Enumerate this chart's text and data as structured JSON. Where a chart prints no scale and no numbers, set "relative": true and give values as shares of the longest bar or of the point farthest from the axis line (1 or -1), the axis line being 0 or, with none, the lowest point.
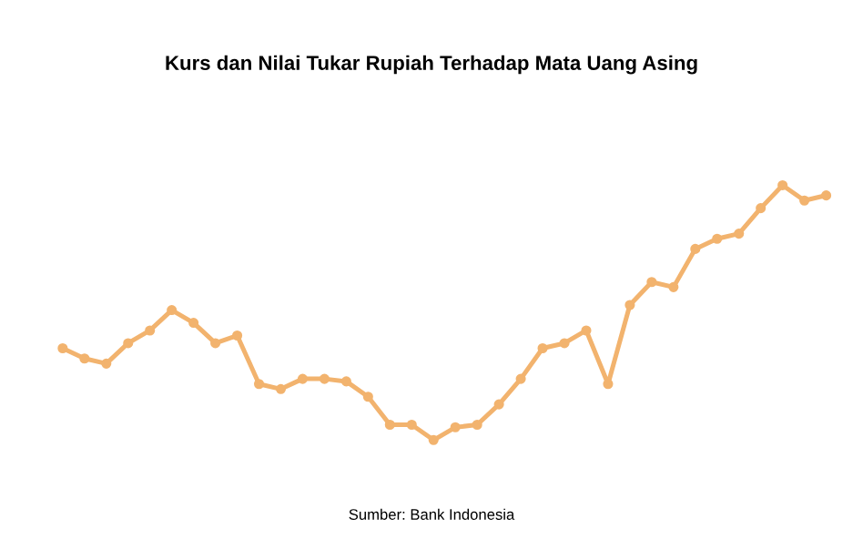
{
  "chart_data": {
    "type": "line",
    "title": "Kurs dan Nilai Tukar Rupiah Terhadap Mata Uang Asing",
    "relative": true,
    "categories": [
      null,
      null,
      null,
      null,
      null,
      null,
      null,
      null,
      null,
      null,
      null,
      null,
      null,
      null,
      null,
      null,
      null,
      null,
      null,
      null,
      null,
      null,
      null,
      null,
      null,
      null,
      null,
      null,
      null,
      null,
      null,
      null,
      null,
      null,
      null,
      null
    ],
    "series": [
      {
        "color": "#f2b36e",
        "values": [
          0.36,
          0.32,
          0.3,
          0.38,
          0.43,
          0.51,
          0.46,
          0.38,
          0.41,
          0.22,
          0.2,
          0.24,
          0.24,
          0.23,
          0.17,
          0.06,
          0.06,
          0,
          0.05,
          0.06,
          0.14,
          0.24,
          0.36,
          0.38,
          0.43,
          0.22,
          0.53,
          0.62,
          0.6,
          0.75,
          0.79,
          0.81,
          0.91,
          1,
          0.94,
          0.96
        ]
      }
    ],
    "marker": "circle",
    "grid": false,
    "legend": false,
    "annotations": [
      "Sumber: Bank Indonesia"
    ]
  }
}
